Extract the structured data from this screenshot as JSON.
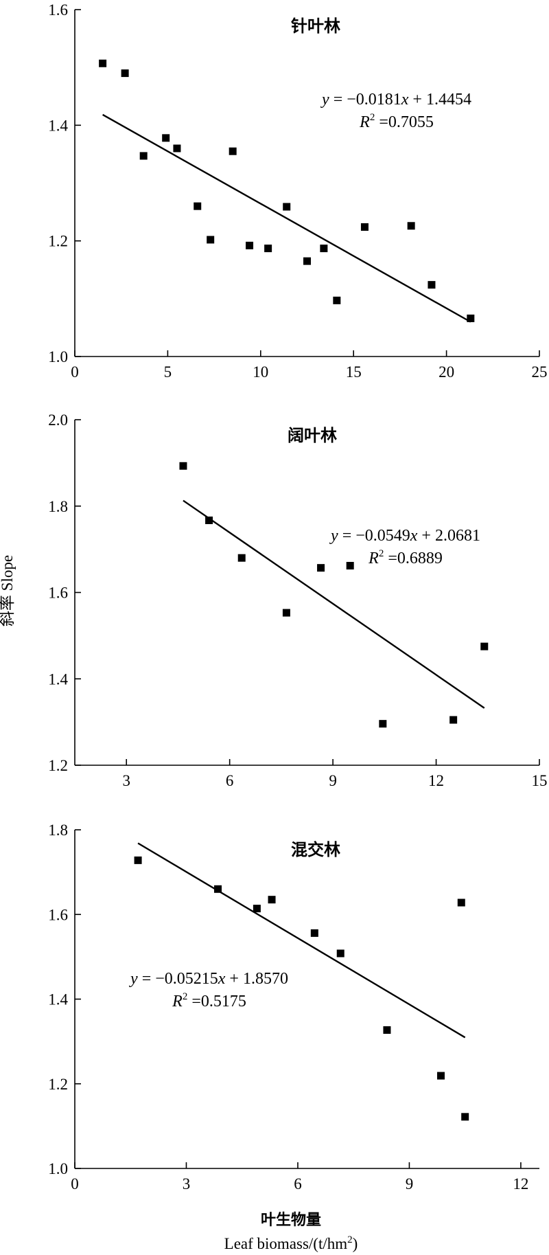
{
  "figure": {
    "ylabel": "斜率 Slope",
    "xlabel_cn": "叶生物量",
    "xlabel_en_prefix": "Leaf biomass/(t/hm",
    "xlabel_en_sup": "2",
    "xlabel_en_suffix": ")"
  },
  "chart_data": [
    {
      "type": "scatter",
      "title": "针叶林",
      "xlim": [
        0,
        25
      ],
      "ylim": [
        1.0,
        1.6
      ],
      "x_ticks": [
        0,
        5,
        10,
        15,
        20,
        25
      ],
      "y_ticks": [
        1.0,
        1.2,
        1.4,
        1.6
      ],
      "x_tick_labels": [
        "0",
        "5",
        "10",
        "15",
        "20",
        "25"
      ],
      "y_tick_labels": [
        "1.0",
        "1.2",
        "1.4",
        "1.6"
      ],
      "points": {
        "x": [
          1.5,
          2.7,
          3.7,
          4.9,
          5.5,
          6.6,
          7.3,
          8.5,
          9.4,
          10.4,
          11.4,
          12.5,
          13.4,
          14.1,
          15.6,
          18.1,
          19.2,
          21.3
        ],
        "y": [
          1.507,
          1.49,
          1.347,
          1.378,
          1.36,
          1.26,
          1.202,
          1.355,
          1.192,
          1.187,
          1.259,
          1.165,
          1.187,
          1.097,
          1.224,
          1.226,
          1.124,
          1.066
        ]
      },
      "fit": {
        "slope": -0.0181,
        "intercept": 1.4454,
        "x_range": [
          1.5,
          21.3
        ]
      },
      "equation_parts": [
        "y",
        " = −0.0181",
        "x",
        " + 1.4454"
      ],
      "r2_parts": [
        "R",
        "2",
        " =0.7055"
      ]
    },
    {
      "type": "scatter",
      "title": "阔叶林",
      "xlim": [
        1.5,
        15
      ],
      "ylim": [
        1.2,
        2.0
      ],
      "x_ticks": [
        3,
        6,
        9,
        12,
        15
      ],
      "y_ticks": [
        1.2,
        1.4,
        1.6,
        1.8,
        2.0
      ],
      "x_tick_labels": [
        "3",
        "6",
        "9",
        "12",
        "15"
      ],
      "y_tick_labels": [
        "1.2",
        "1.4",
        "1.6",
        "1.8",
        "2.0"
      ],
      "points": {
        "x": [
          4.65,
          5.4,
          6.35,
          7.65,
          8.65,
          9.5,
          10.45,
          12.5,
          13.4
        ],
        "y": [
          1.893,
          1.767,
          1.68,
          1.553,
          1.657,
          1.662,
          1.296,
          1.305,
          1.475
        ]
      },
      "fit": {
        "slope": -0.0549,
        "intercept": 2.0681,
        "x_range": [
          4.65,
          13.4
        ]
      },
      "equation_parts": [
        "y",
        " = −0.0549",
        "x",
        " + 2.0681"
      ],
      "r2_parts": [
        "R",
        "2",
        " =0.6889"
      ]
    },
    {
      "type": "scatter",
      "title": "混交林",
      "xlim": [
        0,
        12.5
      ],
      "ylim": [
        1.0,
        1.8
      ],
      "x_ticks": [
        0,
        3,
        6,
        9,
        12
      ],
      "y_ticks": [
        1.0,
        1.2,
        1.4,
        1.6,
        1.8
      ],
      "x_tick_labels": [
        "0",
        "3",
        "6",
        "9",
        "12"
      ],
      "y_tick_labels": [
        "1.0",
        "1.2",
        "1.4",
        "1.6",
        "1.8"
      ],
      "points": {
        "x": [
          1.7,
          3.85,
          4.9,
          5.3,
          6.45,
          7.15,
          8.4,
          9.85,
          10.4,
          10.5
        ],
        "y": [
          1.728,
          1.66,
          1.614,
          1.635,
          1.556,
          1.508,
          1.327,
          1.219,
          1.628,
          1.122
        ]
      },
      "fit": {
        "slope": -0.05215,
        "intercept": 1.857,
        "x_range": [
          1.7,
          10.5
        ]
      },
      "equation_parts": [
        "y",
        " = −0.05215",
        "x",
        " + 1.8570"
      ],
      "r2_parts": [
        "R",
        "2",
        " =0.5175"
      ]
    }
  ]
}
